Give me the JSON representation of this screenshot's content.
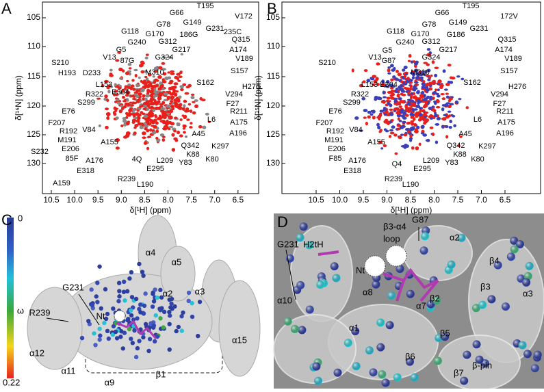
{
  "panels": [
    {
      "letter": "A",
      "x_label": "δ[¹H] (ppm)",
      "y_label": "δ[¹⁵N] (ppm)",
      "x_ticks": [
        "10.5",
        "10.0",
        "9.5",
        "9.0",
        "8.5",
        "8.0",
        "7.5",
        "7.0",
        "6.5"
      ],
      "y_ticks": [
        "105",
        "110",
        "115",
        "120",
        "125",
        "130"
      ],
      "peaks": [
        "G66",
        "T195",
        "V172",
        "G78",
        "G149",
        "G231",
        "186G",
        "G118",
        "G170",
        "235C",
        "Q315",
        "G312",
        "G5",
        "G240",
        "G217",
        "A174",
        "V13",
        "V189",
        "87G",
        "G324",
        "S210",
        "M310",
        "H193",
        "D233",
        "S157",
        "L153",
        "S162",
        "H276",
        "R322",
        "E304",
        "V294",
        "S299",
        "F27",
        "E76",
        "R211",
        "F207",
        "L6",
        "A175",
        "R192",
        "V84",
        "A196",
        "M191",
        "A155",
        "A45",
        "E206",
        "Q342",
        "K297",
        "S232",
        "K88",
        "K80",
        "85F",
        "A176",
        "4Q",
        "L209",
        "E318",
        "E295",
        "Y83",
        "R239",
        "L190",
        "A159"
      ]
    },
    {
      "letter": "B",
      "x_label": "δ[¹H] (ppm)",
      "y_label": "δ[¹⁵N] (ppm)",
      "x_ticks": [
        "10.5",
        "10.0",
        "9.5",
        "9.0",
        "8.5",
        "8.0",
        "7.5",
        "7.0",
        "6.5"
      ],
      "y_ticks": [
        "105",
        "110",
        "115",
        "120",
        "125",
        "130"
      ],
      "peaks": [
        "T195",
        "G66",
        "172V",
        "G78",
        "G149",
        "G231",
        "G118",
        "G170",
        "G186",
        "Q315",
        "G240",
        "G312",
        "G217",
        "A174",
        "V13",
        "G5",
        "V189",
        "G87",
        "G324",
        "S210",
        "M310",
        "S157",
        "L153",
        "E304",
        "S162",
        "H276",
        "R322",
        "V294",
        "S299",
        "F27",
        "E76",
        "R211",
        "F207",
        "L6",
        "A175",
        "R192",
        "V84",
        "A196",
        "M191",
        "A155",
        "A45",
        "E206",
        "Q342",
        "K297",
        "A176",
        "K88",
        "K80",
        "F85",
        "L209",
        "Y83",
        "Q4",
        "E295",
        "E318",
        "R239",
        "L190"
      ]
    },
    {
      "letter": "C",
      "color_bar": {
        "label": "ω",
        "top": "0",
        "bottom": "0.22"
      },
      "labels": [
        "α4",
        "α5",
        "α2",
        "α3",
        "α15",
        "R239",
        "G231",
        "Nt",
        "α12",
        "α11",
        "α9",
        "β1"
      ]
    },
    {
      "letter": "D",
      "labels": [
        "G231",
        "H2tH",
        "β3-α4",
        "loop",
        "G87",
        "α2",
        "β4",
        "β3",
        "α3",
        "Nt",
        "α10",
        "α8",
        "α7",
        "β2",
        "α1",
        "β6",
        "β5",
        "β7",
        "β-pin"
      ]
    }
  ]
}
